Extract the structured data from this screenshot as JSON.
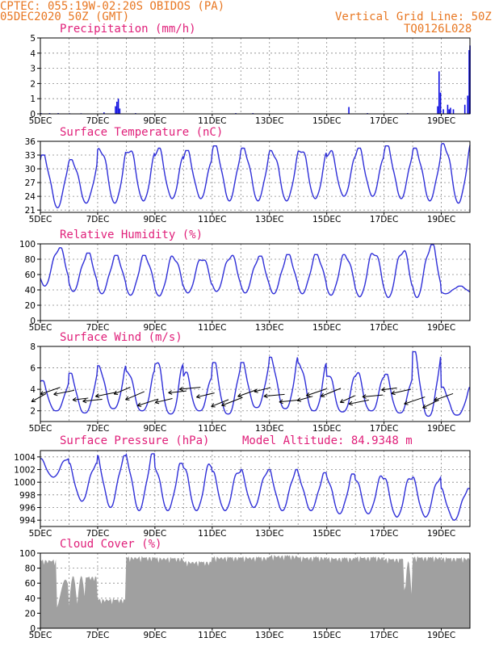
{
  "header": {
    "line1": "CPTEC:   055:19W-02:20S   OBIDOS (PA)",
    "line2": "05DEC2020 50Z (GMT)",
    "grid_line": "Vertical Grid Line: 50Z",
    "code": "TQ0126L028"
  },
  "chart_data": [
    {
      "type": "bar",
      "title": "Precipitation (mm/h)",
      "ylim": [
        0,
        5
      ],
      "yticks": [
        "0",
        "1",
        "2",
        "3",
        "4",
        "5"
      ],
      "xticks": [
        "5DEC",
        "7DEC",
        "9DEC",
        "11DEC",
        "13DEC",
        "15DEC",
        "17DEC",
        "19DEC"
      ],
      "xlim_days": [
        5,
        20
      ],
      "color": "#1010e0",
      "series": [
        {
          "x": [
            5.0,
            5.3,
            5.6,
            6.0,
            6.4,
            7.2,
            7.6,
            7.65,
            7.7,
            7.75,
            8.3,
            11.8,
            12.4,
            15.75,
            16.4,
            17.8,
            18.85,
            18.9,
            18.95,
            19.05,
            19.2,
            19.25,
            19.3,
            19.4,
            19.8,
            19.9,
            19.95,
            19.98
          ],
          "y": [
            0.05,
            0.05,
            0.05,
            0.04,
            0.04,
            0.1,
            0.5,
            0.8,
            1.0,
            0.35,
            0.05,
            0.05,
            0.05,
            0.45,
            0.05,
            0.05,
            0.5,
            2.8,
            1.4,
            0.3,
            0.6,
            0.3,
            0.4,
            0.3,
            0.6,
            1.2,
            4.2,
            4.5
          ]
        }
      ]
    },
    {
      "type": "line",
      "title": "Surface Temperature (nC)",
      "ylim": [
        20.5,
        36
      ],
      "yticks": [
        "21",
        "24",
        "27",
        "30",
        "33",
        "36"
      ],
      "xticks": [
        "5DEC",
        "7DEC",
        "9DEC",
        "11DEC",
        "13DEC",
        "15DEC",
        "17DEC",
        "19DEC"
      ],
      "color": "#3030d8",
      "base": 28,
      "daily_amplitude": 5,
      "peaks": [
        33,
        32,
        34.5,
        34.5,
        34.5,
        34,
        35,
        34.5,
        34,
        34.5,
        34,
        34.5,
        35,
        34.5,
        35.5
      ],
      "mins": [
        21.5,
        22.5,
        22.5,
        23,
        23.5,
        23.5,
        23,
        23,
        23,
        23.5,
        24,
        24,
        23.5,
        23,
        22.5
      ]
    },
    {
      "type": "line",
      "title": "Relative Humidity (%)",
      "ylim": [
        0,
        100
      ],
      "yticks": [
        "0",
        "20",
        "40",
        "60",
        "80",
        "100"
      ],
      "xticks": [
        "5DEC",
        "7DEC",
        "9DEC",
        "11DEC",
        "13DEC",
        "15DEC",
        "17DEC",
        "19DEC"
      ],
      "color": "#3030d8",
      "peaks": [
        95,
        88,
        85,
        85,
        84,
        82,
        85,
        84,
        86,
        86,
        86,
        90,
        92,
        99,
        45
      ],
      "mins": [
        45,
        38,
        35,
        33,
        32,
        36,
        38,
        36,
        35,
        35,
        33,
        31,
        30,
        30,
        35
      ]
    },
    {
      "type": "line",
      "title": "Surface Wind (m/s)",
      "ylim": [
        1,
        8
      ],
      "yticks": [
        "2",
        "4",
        "6",
        "8"
      ],
      "xticks": [
        "5DEC",
        "7DEC",
        "9DEC",
        "11DEC",
        "13DEC",
        "15DEC",
        "17DEC",
        "19DEC"
      ],
      "color": "#3030d8",
      "peaks": [
        4.8,
        5.5,
        6.2,
        5.8,
        6.8,
        5.6,
        6.5,
        6.5,
        7.0,
        6.5,
        5.5,
        5.6,
        5.4,
        7.5,
        4.2
      ],
      "mins": [
        2.0,
        1.8,
        2.2,
        2.0,
        1.7,
        2.0,
        1.7,
        2.3,
        2.2,
        2.0,
        1.9,
        2.0,
        1.8,
        1.5,
        1.6
      ],
      "vectors": {
        "count": 30,
        "direction": "from-right, pointing lower-left"
      }
    },
    {
      "type": "line",
      "title": "Surface Pressure (hPa)",
      "annotation": "Model Altitude: 84.9348 m",
      "ylim": [
        993,
        1005
      ],
      "yticks": [
        "994",
        "996",
        "998",
        "1000",
        "1002",
        "1004"
      ],
      "xticks": [
        "5DEC",
        "7DEC",
        "9DEC",
        "11DEC",
        "13DEC",
        "15DEC",
        "17DEC",
        "19DEC"
      ],
      "color": "#3030d8",
      "peaks": [
        1003.8,
        1003,
        1004.2,
        1004.5,
        1003,
        1003,
        1002,
        1002,
        1002,
        1001.5,
        1001.3,
        1001,
        1001,
        1000.8,
        999
      ],
      "mins": [
        1000.8,
        997,
        996,
        995.5,
        995.5,
        995.5,
        995.5,
        996,
        995.5,
        995.5,
        995,
        995,
        994.5,
        994.5,
        994
      ]
    },
    {
      "type": "area",
      "title": "Cloud Cover (%)",
      "ylim": [
        0,
        100
      ],
      "yticks": [
        "0",
        "20",
        "40",
        "60",
        "80",
        "100"
      ],
      "xticks": [
        "5DEC",
        "7DEC",
        "9DEC",
        "11DEC",
        "13DEC",
        "15DEC",
        "17DEC",
        "19DEC"
      ],
      "color": "#a0a0a0",
      "levels": [
        92,
        70,
        40,
        96,
        95,
        90,
        96,
        96,
        98,
        96,
        95,
        96,
        94,
        96,
        95
      ]
    }
  ]
}
